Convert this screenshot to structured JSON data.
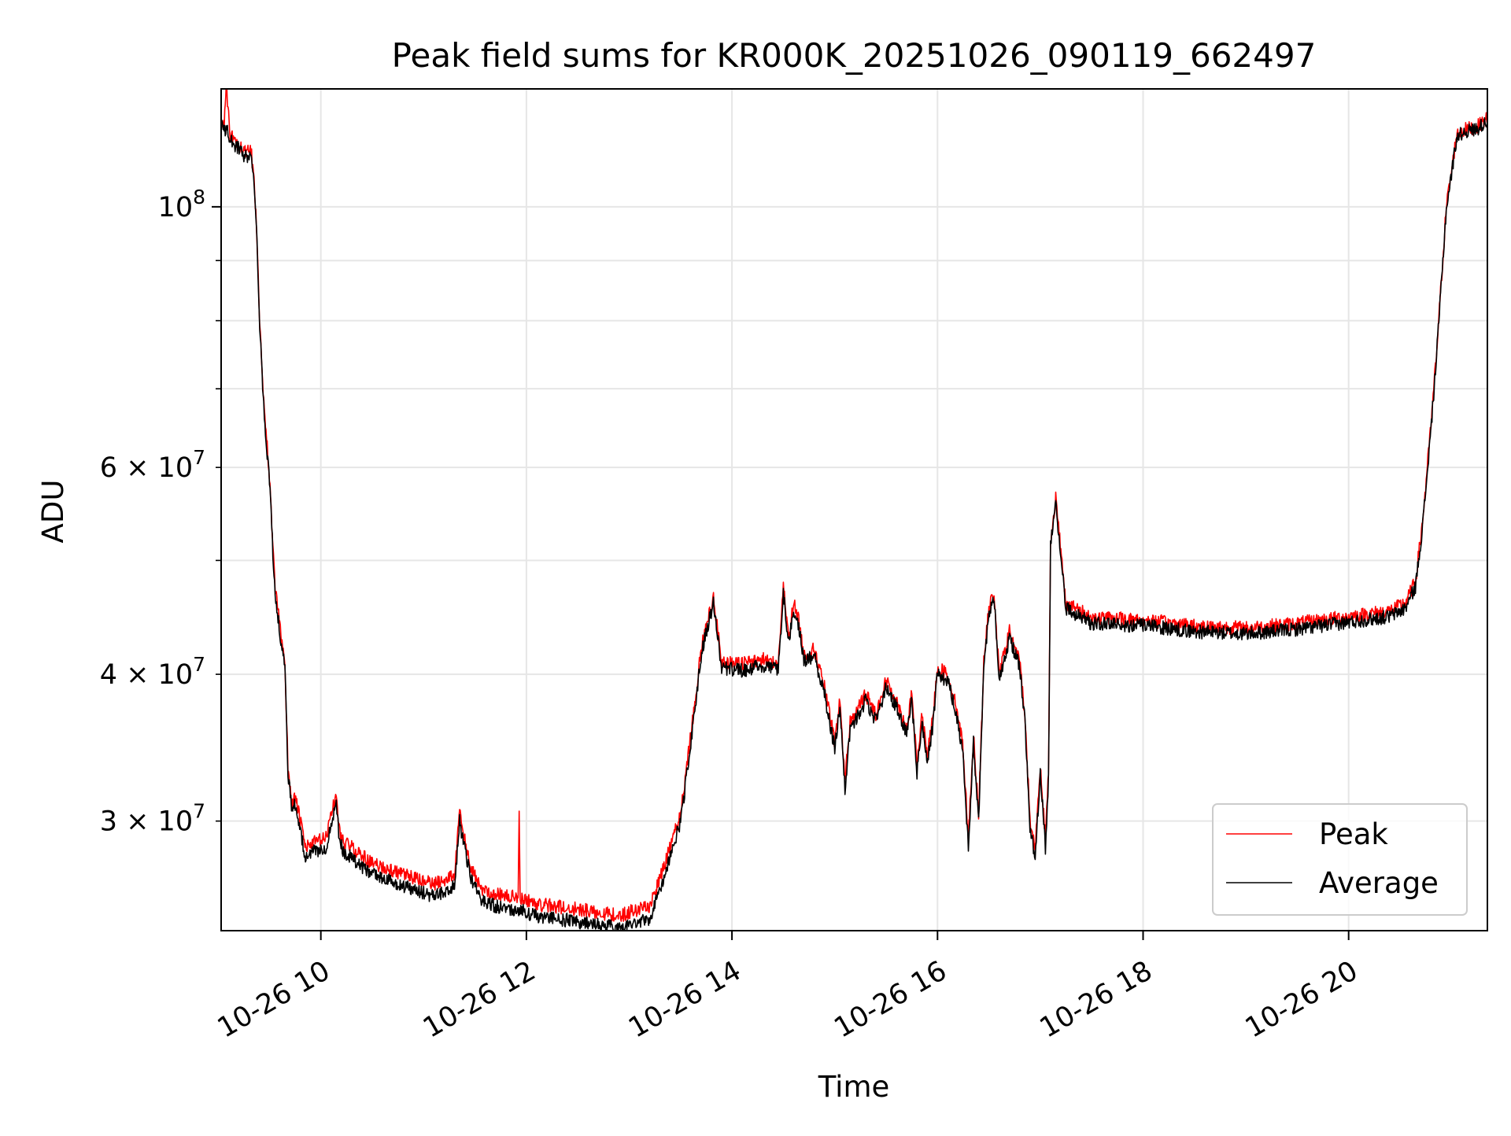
{
  "chart_data": {
    "type": "line",
    "title": "Peak field sums for KR000K_20251026_090119_662497",
    "xlabel": "Time",
    "ylabel": "ADU",
    "yscale": "log",
    "xlim": [
      9.03,
      21.35
    ],
    "ylim": [
      24200000,
      126000000
    ],
    "grid": true,
    "legend_position": "lower-right",
    "x_ticks": [
      {
        "value": 10,
        "label": "10-26 10"
      },
      {
        "value": 12,
        "label": "10-26 12"
      },
      {
        "value": 14,
        "label": "10-26 14"
      },
      {
        "value": 16,
        "label": "10-26 16"
      },
      {
        "value": 18,
        "label": "10-26 18"
      },
      {
        "value": 20,
        "label": "10-26 20"
      }
    ],
    "y_major_ticks": [
      {
        "value": 100000000,
        "base": "10",
        "exp": "8"
      }
    ],
    "y_minor_ticks": [
      {
        "value": 30000000,
        "mant": "3",
        "base": "10",
        "exp": "7"
      },
      {
        "value": 40000000,
        "mant": "4",
        "base": "10",
        "exp": "7"
      },
      {
        "value": 60000000,
        "mant": "6",
        "base": "10",
        "exp": "7"
      }
    ],
    "y_minor_unlabeled": [
      50000000,
      70000000,
      80000000,
      90000000
    ],
    "series": [
      {
        "name": "Peak",
        "color": "#ff0000",
        "x": [
          9.03,
          9.06,
          9.08,
          9.12,
          9.2,
          9.28,
          9.32,
          9.35,
          9.38,
          9.4,
          9.45,
          9.5,
          9.55,
          9.6,
          9.65,
          9.68,
          9.72,
          9.75,
          9.8,
          9.85,
          9.95,
          10.05,
          10.1,
          10.15,
          10.18,
          10.22,
          10.3,
          10.5,
          10.8,
          11.1,
          11.3,
          11.35,
          11.38,
          11.45,
          11.55,
          11.7,
          11.92,
          11.93,
          11.94,
          12.1,
          12.4,
          12.7,
          12.9,
          13.0,
          13.2,
          13.3,
          13.4,
          13.5,
          13.55,
          13.6,
          13.65,
          13.7,
          13.75,
          13.82,
          13.9,
          14.1,
          14.3,
          14.45,
          14.5,
          14.55,
          14.6,
          14.65,
          14.7,
          14.8,
          14.9,
          15.0,
          15.05,
          15.1,
          15.15,
          15.2,
          15.3,
          15.4,
          15.5,
          15.6,
          15.7,
          15.75,
          15.8,
          15.85,
          15.9,
          15.95,
          16.0,
          16.1,
          16.2,
          16.25,
          16.3,
          16.35,
          16.4,
          16.45,
          16.5,
          16.55,
          16.6,
          16.7,
          16.8,
          16.85,
          16.9,
          16.95,
          17.0,
          17.05,
          17.08,
          17.1,
          17.15,
          17.25,
          17.5,
          18.0,
          18.5,
          19.0,
          19.5,
          20.0,
          20.4,
          20.55,
          20.65,
          20.72,
          20.8,
          20.85,
          20.9,
          20.95,
          21.0,
          21.05,
          21.1,
          21.15,
          21.25,
          21.35
        ],
        "values": [
          118000000,
          118000000,
          126000000,
          115000000,
          113000000,
          111000000,
          112000000,
          105000000,
          94000000,
          82000000,
          67000000,
          59000000,
          48000000,
          44000000,
          41000000,
          33500000,
          31000000,
          31500000,
          30000000,
          28500000,
          28800000,
          29000000,
          30500000,
          31500000,
          29500000,
          28800000,
          28500000,
          27600000,
          27000000,
          26500000,
          27000000,
          30500000,
          29500000,
          27500000,
          26300000,
          26000000,
          25800000,
          30800000,
          25800000,
          25500000,
          25300000,
          25100000,
          24900000,
          25100000,
          25400000,
          26800000,
          28500000,
          30500000,
          32800000,
          35500000,
          38500000,
          42000000,
          44000000,
          46500000,
          41000000,
          40800000,
          41200000,
          40800000,
          47500000,
          43000000,
          46000000,
          44500000,
          41500000,
          42000000,
          39000000,
          35000000,
          38000000,
          32500000,
          36500000,
          37000000,
          38500000,
          37000000,
          39500000,
          38000000,
          36000000,
          38500000,
          33500000,
          37000000,
          34000000,
          36500000,
          40500000,
          40000000,
          37000000,
          34500000,
          29000000,
          35500000,
          30500000,
          41000000,
          45500000,
          47000000,
          40000000,
          43500000,
          41000000,
          37000000,
          30000000,
          28500000,
          33500000,
          29000000,
          33000000,
          52000000,
          56500000,
          46000000,
          44700000,
          44500000,
          44000000,
          43800000,
          44200000,
          44800000,
          45300000,
          46000000,
          48000000,
          54000000,
          65000000,
          74000000,
          86000000,
          100000000,
          107000000,
          115000000,
          116000000,
          116500000,
          117000000,
          119000000
        ]
      },
      {
        "name": "Average",
        "color": "#000000",
        "x": [
          9.03,
          9.06,
          9.08,
          9.12,
          9.2,
          9.28,
          9.32,
          9.35,
          9.38,
          9.4,
          9.45,
          9.5,
          9.55,
          9.6,
          9.65,
          9.68,
          9.72,
          9.75,
          9.8,
          9.85,
          9.95,
          10.05,
          10.1,
          10.15,
          10.18,
          10.22,
          10.3,
          10.5,
          10.8,
          11.1,
          11.3,
          11.35,
          11.38,
          11.45,
          11.55,
          11.7,
          11.92,
          11.93,
          11.94,
          12.1,
          12.4,
          12.7,
          12.9,
          13.0,
          13.2,
          13.3,
          13.4,
          13.5,
          13.55,
          13.6,
          13.65,
          13.7,
          13.75,
          13.82,
          13.9,
          14.1,
          14.3,
          14.45,
          14.5,
          14.55,
          14.6,
          14.65,
          14.7,
          14.8,
          14.9,
          15.0,
          15.05,
          15.1,
          15.15,
          15.2,
          15.3,
          15.4,
          15.5,
          15.6,
          15.7,
          15.75,
          15.8,
          15.85,
          15.9,
          15.95,
          16.0,
          16.1,
          16.2,
          16.25,
          16.3,
          16.35,
          16.4,
          16.45,
          16.5,
          16.55,
          16.6,
          16.7,
          16.8,
          16.85,
          16.9,
          16.95,
          17.0,
          17.05,
          17.08,
          17.1,
          17.15,
          17.25,
          17.5,
          18.0,
          18.5,
          19.0,
          19.5,
          20.0,
          20.4,
          20.55,
          20.65,
          20.72,
          20.8,
          20.85,
          20.9,
          20.95,
          21.0,
          21.05,
          21.1,
          21.15,
          21.25,
          21.35
        ],
        "values": [
          118000000,
          116000000,
          116500000,
          114000000,
          112000000,
          110000000,
          111000000,
          104000000,
          93000000,
          81000000,
          66000000,
          58500000,
          47500000,
          43500000,
          40500000,
          33000000,
          30500000,
          31000000,
          29500000,
          28000000,
          28300000,
          28400000,
          30000000,
          31000000,
          29000000,
          28200000,
          27900000,
          27000000,
          26400000,
          25900000,
          26400000,
          30000000,
          29000000,
          27000000,
          25700000,
          25400000,
          25200000,
          25200000,
          25200000,
          24900000,
          24700000,
          24500000,
          24300000,
          24500000,
          24800000,
          26200000,
          28000000,
          30000000,
          32300000,
          35000000,
          38000000,
          41500000,
          43500000,
          46000000,
          40500000,
          40300000,
          40700000,
          40300000,
          47000000,
          42500000,
          45500000,
          44000000,
          41000000,
          41500000,
          38500000,
          34600000,
          37500000,
          32000000,
          36000000,
          36500000,
          38000000,
          36500000,
          39000000,
          37500000,
          35500000,
          38000000,
          33000000,
          36500000,
          33500000,
          36000000,
          40000000,
          39500000,
          36500000,
          34000000,
          28500000,
          35000000,
          30000000,
          40500000,
          45000000,
          46500000,
          39500000,
          43000000,
          40500000,
          36500000,
          29500000,
          28000000,
          33000000,
          28500000,
          32500000,
          51500000,
          56000000,
          45500000,
          44200000,
          44000000,
          43500000,
          43300000,
          43700000,
          44300000,
          44800000,
          45500000,
          47500000,
          53500000,
          64500000,
          73500000,
          85500000,
          99500000,
          106500000,
          114500000,
          115500000,
          116000000,
          116500000,
          118500000
        ]
      }
    ]
  }
}
